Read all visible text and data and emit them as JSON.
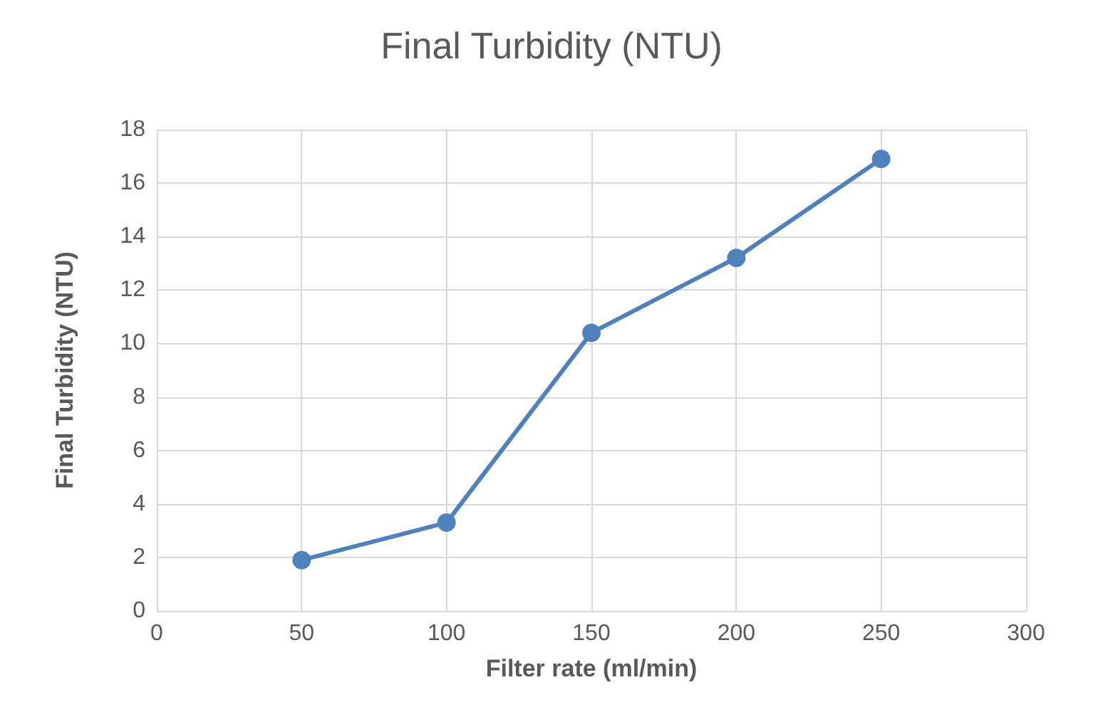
{
  "chart_data": {
    "type": "line",
    "title": "Final Turbidity (NTU)",
    "xlabel": "Filter rate (ml/min)",
    "ylabel": "Final Turbidity (NTU)",
    "x": [
      50,
      100,
      150,
      200,
      250
    ],
    "series": [
      {
        "color": "#4f81bd",
        "values": [
          1.9,
          3.3,
          10.4,
          13.2,
          16.9
        ]
      }
    ],
    "xlim": [
      0,
      300
    ],
    "xticks": [
      0,
      50,
      100,
      150,
      200,
      250,
      300
    ],
    "ylim": [
      0,
      18
    ],
    "yticks": [
      0,
      2,
      4,
      6,
      8,
      10,
      12,
      14,
      16,
      18
    ],
    "grid": true,
    "marker": "circle",
    "line_style": "solid"
  }
}
